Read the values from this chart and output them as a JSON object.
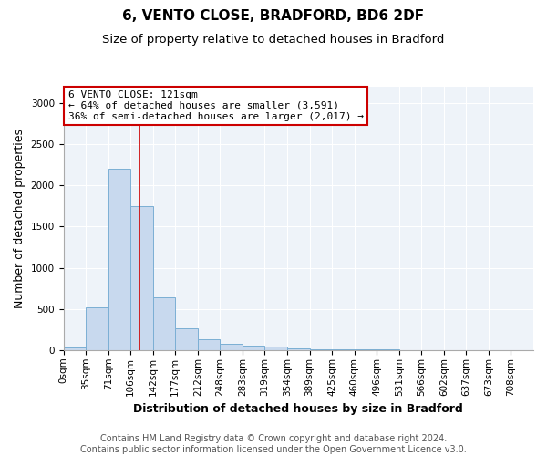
{
  "title": "6, VENTO CLOSE, BRADFORD, BD6 2DF",
  "subtitle": "Size of property relative to detached houses in Bradford",
  "xlabel": "Distribution of detached houses by size in Bradford",
  "ylabel": "Number of detached properties",
  "bin_labels": [
    "0sqm",
    "35sqm",
    "71sqm",
    "106sqm",
    "142sqm",
    "177sqm",
    "212sqm",
    "248sqm",
    "283sqm",
    "319sqm",
    "354sqm",
    "389sqm",
    "425sqm",
    "460sqm",
    "496sqm",
    "531sqm",
    "566sqm",
    "602sqm",
    "637sqm",
    "673sqm",
    "708sqm"
  ],
  "bar_heights": [
    30,
    520,
    2200,
    1750,
    640,
    260,
    135,
    80,
    50,
    40,
    20,
    15,
    10,
    15,
    5,
    0,
    0,
    0,
    0,
    0,
    0
  ],
  "bar_color": "#c8d9ee",
  "bar_edge_color": "#7bafd4",
  "vline_color": "#cc0000",
  "annotation_text": "6 VENTO CLOSE: 121sqm\n← 64% of detached houses are smaller (3,591)\n36% of semi-detached houses are larger (2,017) →",
  "annotation_box_color": "#cc0000",
  "ylim": [
    0,
    3200
  ],
  "yticks": [
    0,
    500,
    1000,
    1500,
    2000,
    2500,
    3000
  ],
  "footer_line1": "Contains HM Land Registry data © Crown copyright and database right 2024.",
  "footer_line2": "Contains public sector information licensed under the Open Government Licence v3.0.",
  "title_fontsize": 11,
  "subtitle_fontsize": 9.5,
  "axis_label_fontsize": 9,
  "tick_fontsize": 7.5,
  "annotation_fontsize": 8,
  "footer_fontsize": 7
}
